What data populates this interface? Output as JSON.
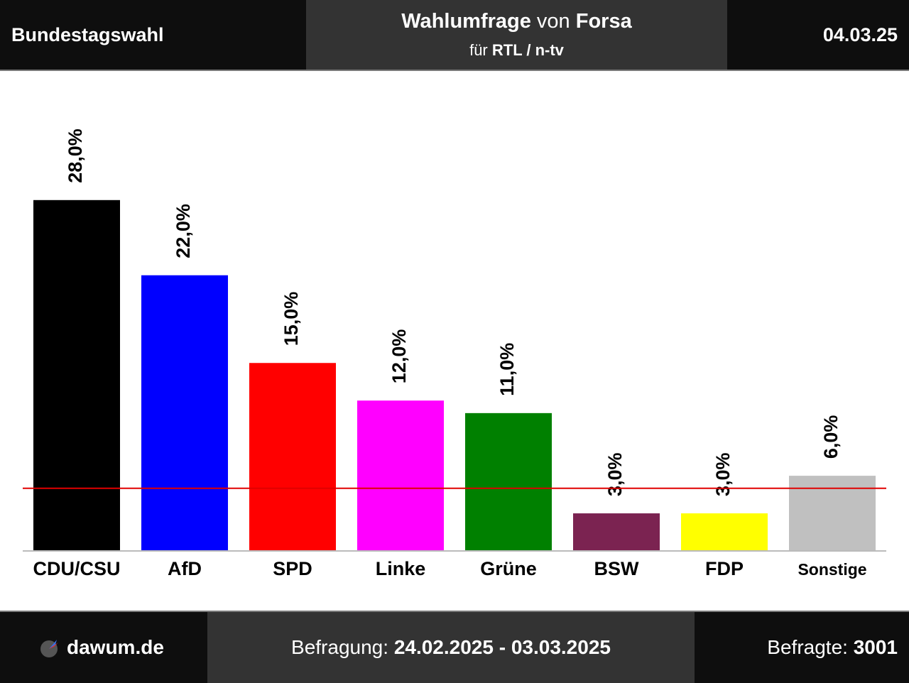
{
  "header": {
    "left": "Bundestagswahl",
    "title_bold": "Wahlumfrage",
    "title_mid": " von ",
    "title_pollster": "Forsa",
    "sub_prefix": "für ",
    "sub_client": "RTL / n-tv",
    "date": "04.03.25"
  },
  "footer": {
    "site": "dawum.de",
    "survey_label": "Befragung: ",
    "survey_period": "24.02.2025 - 03.03.2025",
    "respondents_label": "Befragte: ",
    "respondents_count": "3001"
  },
  "colors": {
    "threshold_line": "#e00000"
  },
  "chart_data": {
    "type": "bar",
    "categories": [
      "CDU/CSU",
      "AfD",
      "SPD",
      "Linke",
      "Grüne",
      "BSW",
      "FDP",
      "Sonstige"
    ],
    "values": [
      28.0,
      22.0,
      15.0,
      12.0,
      11.0,
      3.0,
      3.0,
      6.0
    ],
    "labels": [
      "28,0%",
      "22,0%",
      "15,0%",
      "12,0%",
      "11,0%",
      "3,0%",
      "3,0%",
      "6,0%"
    ],
    "colors": [
      "#000000",
      "#0000ff",
      "#ff0000",
      "#ff00ff",
      "#008000",
      "#7b2351",
      "#ffff00",
      "#c0c0c0"
    ],
    "threshold": 5.0,
    "ylim": [
      0,
      30
    ],
    "title": "",
    "xlabel": "",
    "ylabel": ""
  }
}
